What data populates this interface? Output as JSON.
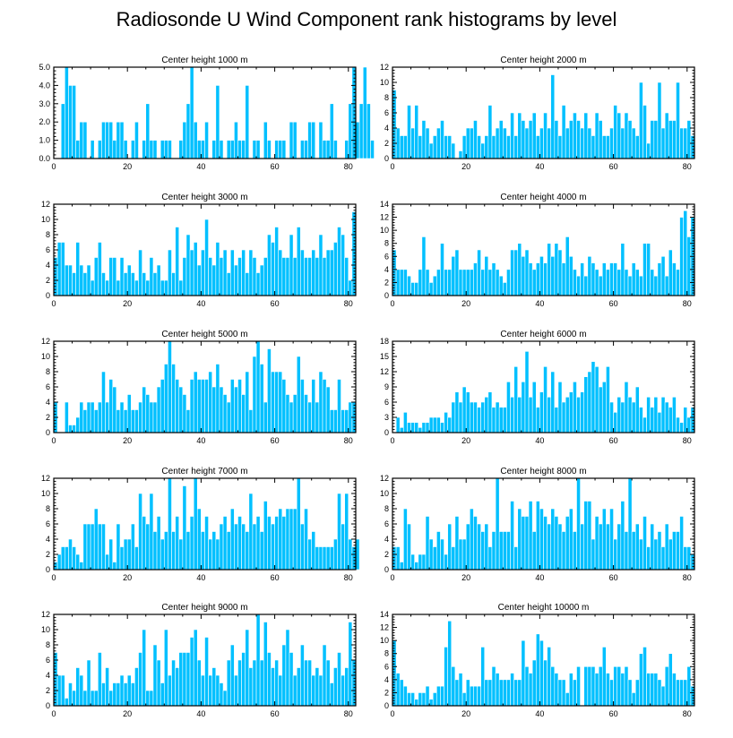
{
  "title": "Radiosonde U Wind Component rank histograms by level",
  "chart_data": [
    {
      "type": "bar",
      "title": "Center height 1000 m",
      "xlim": [
        0,
        82
      ],
      "ylim": [
        0,
        5
      ],
      "xticks": [
        0,
        20,
        40,
        60,
        80
      ],
      "yticks": [
        0,
        1,
        2,
        3,
        4,
        5
      ],
      "ytick_labels": [
        "0.0",
        "1.0",
        "2.0",
        "3.0",
        "4.0",
        "5.0"
      ],
      "values": [
        0,
        0,
        3,
        5,
        4,
        4,
        1,
        2,
        2,
        0,
        1,
        0,
        1,
        2,
        2,
        2,
        1,
        2,
        2,
        1,
        0,
        1,
        2,
        0,
        1,
        3,
        1,
        1,
        0,
        1,
        1,
        1,
        0,
        0,
        1,
        2,
        3,
        5,
        2,
        1,
        1,
        2,
        0,
        1,
        4,
        1,
        0,
        1,
        1,
        2,
        1,
        1,
        4,
        0,
        1,
        1,
        0,
        2,
        1,
        0,
        1,
        1,
        1,
        0,
        2,
        2,
        0,
        1,
        1,
        2,
        2,
        0,
        2,
        1,
        1,
        3,
        1,
        0,
        0,
        1,
        3,
        5,
        2,
        3,
        5,
        3,
        1
      ]
    },
    {
      "type": "bar",
      "title": "Center height 2000 m",
      "xlim": [
        0,
        82
      ],
      "ylim": [
        0,
        12
      ],
      "xticks": [
        0,
        20,
        40,
        60,
        80
      ],
      "yticks": [
        0,
        2,
        4,
        6,
        8,
        10,
        12
      ],
      "ytick_labels": [
        "0",
        "2",
        "4",
        "6",
        "8",
        "10",
        "12"
      ],
      "values": [
        9,
        4,
        3,
        3,
        7,
        4,
        7,
        3,
        5,
        4,
        2,
        3,
        4,
        5,
        3,
        3,
        2,
        0,
        1,
        3,
        4,
        4,
        5,
        3,
        2,
        3,
        7,
        3,
        4,
        5,
        4,
        3,
        6,
        3,
        6,
        5,
        4,
        5,
        6,
        3,
        4,
        6,
        4,
        11,
        5,
        3,
        7,
        4,
        5,
        6,
        5,
        4,
        6,
        4,
        3,
        6,
        5,
        3,
        3,
        4,
        7,
        6,
        4,
        6,
        5,
        4,
        3,
        10,
        7,
        2,
        5,
        5,
        10,
        4,
        6,
        5,
        5,
        10,
        4,
        4,
        5,
        3
      ]
    },
    {
      "type": "bar",
      "title": "Center height 3000 m",
      "xlim": [
        0,
        82
      ],
      "ylim": [
        0,
        12
      ],
      "xticks": [
        0,
        20,
        40,
        60,
        80
      ],
      "yticks": [
        0,
        2,
        4,
        6,
        8,
        10,
        12
      ],
      "ytick_labels": [
        "0",
        "2",
        "4",
        "6",
        "8",
        "10",
        "12"
      ],
      "values": [
        5,
        7,
        7,
        4,
        4,
        3,
        7,
        4,
        3,
        4,
        2,
        5,
        7,
        3,
        2,
        5,
        5,
        2,
        5,
        3,
        4,
        3,
        2,
        6,
        3,
        2,
        5,
        3,
        4,
        2,
        2,
        6,
        3,
        9,
        2,
        5,
        8,
        6,
        7,
        4,
        6,
        10,
        5,
        4,
        7,
        5,
        6,
        3,
        6,
        4,
        5,
        6,
        3,
        6,
        5,
        3,
        4,
        5,
        8,
        7,
        9,
        6,
        5,
        5,
        8,
        5,
        9,
        6,
        5,
        5,
        6,
        5,
        8,
        5,
        6,
        6,
        7,
        9,
        8,
        5,
        2,
        11
      ]
    },
    {
      "type": "bar",
      "title": "Center height 4000 m",
      "xlim": [
        0,
        82
      ],
      "ylim": [
        0,
        14
      ],
      "xticks": [
        0,
        20,
        40,
        60,
        80
      ],
      "yticks": [
        0,
        2,
        4,
        6,
        8,
        10,
        12,
        14
      ],
      "ytick_labels": [
        "0",
        "2",
        "4",
        "6",
        "8",
        "10",
        "12",
        "14"
      ],
      "values": [
        7,
        4,
        4,
        4,
        3,
        2,
        2,
        4,
        9,
        4,
        2,
        3,
        4,
        8,
        4,
        4,
        6,
        7,
        4,
        4,
        4,
        4,
        5,
        7,
        4,
        6,
        4,
        5,
        4,
        3,
        2,
        4,
        7,
        7,
        8,
        6,
        7,
        5,
        4,
        5,
        6,
        5,
        8,
        6,
        8,
        7,
        5,
        9,
        6,
        4,
        3,
        5,
        3,
        6,
        5,
        4,
        3,
        5,
        4,
        5,
        5,
        4,
        8,
        4,
        3,
        5,
        4,
        3,
        8,
        8,
        4,
        3,
        5,
        6,
        3,
        7,
        5,
        4,
        12,
        13,
        9,
        12
      ]
    },
    {
      "type": "bar",
      "title": "Center height 5000 m",
      "xlim": [
        0,
        82
      ],
      "ylim": [
        0,
        12
      ],
      "xticks": [
        0,
        20,
        40,
        60,
        80
      ],
      "yticks": [
        0,
        2,
        4,
        6,
        8,
        10,
        12
      ],
      "ytick_labels": [
        "0",
        "2",
        "4",
        "6",
        "8",
        "10",
        "12"
      ],
      "values": [
        4,
        0,
        0,
        4,
        1,
        1,
        2,
        4,
        3,
        4,
        4,
        3,
        4,
        8,
        4,
        7,
        6,
        3,
        4,
        3,
        5,
        3,
        3,
        4,
        6,
        5,
        4,
        4,
        6,
        7,
        9,
        12,
        9,
        7,
        6,
        5,
        3,
        7,
        8,
        7,
        7,
        7,
        8,
        6,
        9,
        6,
        5,
        4,
        7,
        6,
        7,
        5,
        8,
        3,
        10,
        12,
        9,
        4,
        11,
        8,
        8,
        8,
        7,
        5,
        4,
        5,
        10,
        7,
        5,
        4,
        7,
        4,
        8,
        7,
        6,
        3,
        3,
        7,
        3,
        3,
        4,
        4
      ]
    },
    {
      "type": "bar",
      "title": "Center height 6000 m",
      "xlim": [
        0,
        82
      ],
      "ylim": [
        0,
        18
      ],
      "xticks": [
        0,
        20,
        40,
        60,
        80
      ],
      "yticks": [
        0,
        3,
        6,
        9,
        12,
        15,
        18
      ],
      "ytick_labels": [
        "0",
        "3",
        "6",
        "9",
        "12",
        "15",
        "18"
      ],
      "values": [
        0,
        3,
        1,
        4,
        2,
        2,
        2,
        1,
        2,
        2,
        3,
        3,
        3,
        2,
        4,
        3,
        6,
        8,
        6,
        9,
        8,
        6,
        6,
        5,
        6,
        7,
        8,
        5,
        6,
        5,
        5,
        10,
        7,
        13,
        7,
        10,
        16,
        7,
        10,
        5,
        8,
        13,
        7,
        12,
        5,
        10,
        6,
        7,
        8,
        10,
        7,
        8,
        11,
        12,
        14,
        13,
        9,
        10,
        13,
        6,
        4,
        7,
        6,
        10,
        7,
        6,
        9,
        5,
        3,
        7,
        5,
        7,
        4,
        7,
        6,
        5,
        7,
        3,
        2,
        5,
        3,
        5
      ]
    },
    {
      "type": "bar",
      "title": "Center height 7000 m",
      "xlim": [
        0,
        82
      ],
      "ylim": [
        0,
        12
      ],
      "xticks": [
        0,
        20,
        40,
        60,
        80
      ],
      "yticks": [
        0,
        2,
        4,
        6,
        8,
        10,
        12
      ],
      "ytick_labels": [
        "0",
        "2",
        "4",
        "6",
        "8",
        "10",
        "12"
      ],
      "values": [
        1,
        2,
        3,
        3,
        4,
        3,
        2,
        1,
        6,
        6,
        6,
        8,
        6,
        6,
        2,
        4,
        1,
        6,
        3,
        4,
        4,
        6,
        3,
        10,
        7,
        6,
        10,
        5,
        7,
        4,
        5,
        12,
        5,
        7,
        4,
        11,
        5,
        7,
        12,
        8,
        5,
        7,
        4,
        5,
        4,
        6,
        7,
        5,
        8,
        6,
        7,
        6,
        5,
        10,
        6,
        7,
        5,
        9,
        7,
        6,
        7,
        8,
        7,
        8,
        8,
        8,
        12,
        6,
        8,
        4,
        5,
        3,
        3,
        3,
        3,
        3,
        4,
        10,
        6,
        10,
        4,
        3,
        4
      ]
    },
    {
      "type": "bar",
      "title": "Center height 8000 m",
      "xlim": [
        0,
        82
      ],
      "ylim": [
        0,
        12
      ],
      "xticks": [
        0,
        20,
        40,
        60,
        80
      ],
      "yticks": [
        0,
        2,
        4,
        6,
        8,
        10,
        12
      ],
      "ytick_labels": [
        "0",
        "2",
        "4",
        "6",
        "8",
        "10",
        "12"
      ],
      "values": [
        3,
        3,
        1,
        8,
        6,
        2,
        1,
        2,
        2,
        7,
        4,
        3,
        5,
        4,
        2,
        6,
        3,
        7,
        4,
        4,
        6,
        8,
        7,
        6,
        5,
        6,
        3,
        5,
        12,
        5,
        5,
        5,
        9,
        3,
        8,
        7,
        7,
        9,
        5,
        9,
        8,
        7,
        6,
        8,
        7,
        6,
        5,
        7,
        8,
        5,
        12,
        6,
        9,
        9,
        4,
        7,
        6,
        8,
        6,
        8,
        4,
        6,
        9,
        5,
        12,
        5,
        6,
        4,
        7,
        3,
        6,
        4,
        5,
        3,
        6,
        4,
        5,
        5,
        7,
        3,
        3,
        2
      ]
    },
    {
      "type": "bar",
      "title": "Center height 9000 m",
      "xlim": [
        0,
        82
      ],
      "ylim": [
        0,
        12
      ],
      "xticks": [
        0,
        20,
        40,
        60,
        80
      ],
      "yticks": [
        0,
        2,
        4,
        6,
        8,
        10,
        12
      ],
      "ytick_labels": [
        "0",
        "2",
        "4",
        "6",
        "8",
        "10",
        "12"
      ],
      "values": [
        7,
        4,
        4,
        1,
        3,
        2,
        5,
        4,
        2,
        6,
        2,
        2,
        7,
        3,
        5,
        2,
        3,
        3,
        4,
        3,
        4,
        3,
        5,
        7,
        10,
        2,
        2,
        8,
        6,
        3,
        10,
        4,
        6,
        5,
        7,
        7,
        7,
        9,
        10,
        6,
        4,
        9,
        4,
        5,
        4,
        3,
        2,
        6,
        8,
        4,
        6,
        7,
        10,
        5,
        6,
        12,
        6,
        11,
        7,
        5,
        6,
        4,
        8,
        10,
        7,
        4,
        5,
        8,
        6,
        6,
        4,
        5,
        4,
        8,
        6,
        3,
        5,
        7,
        4,
        5,
        11,
        6
      ]
    },
    {
      "type": "bar",
      "title": "Center height 10000 m",
      "xlim": [
        0,
        82
      ],
      "ylim": [
        0,
        14
      ],
      "xticks": [
        0,
        20,
        40,
        60,
        80
      ],
      "yticks": [
        0,
        2,
        4,
        6,
        8,
        10,
        12,
        14
      ],
      "ytick_labels": [
        "0",
        "2",
        "4",
        "6",
        "8",
        "10",
        "12",
        "14"
      ],
      "values": [
        10,
        5,
        4,
        3,
        2,
        2,
        1,
        2,
        2,
        3,
        1,
        2,
        3,
        3,
        9,
        13,
        6,
        4,
        5,
        2,
        4,
        3,
        3,
        3,
        9,
        4,
        4,
        6,
        5,
        4,
        4,
        4,
        5,
        4,
        4,
        10,
        6,
        5,
        7,
        11,
        10,
        7,
        9,
        6,
        5,
        4,
        4,
        2,
        5,
        4,
        6,
        0,
        6,
        6,
        6,
        5,
        6,
        9,
        5,
        4,
        6,
        6,
        5,
        6,
        4,
        2,
        4,
        8,
        9,
        5,
        5,
        5,
        4,
        3,
        6,
        8,
        5,
        4,
        4,
        4,
        6,
        3
      ]
    }
  ]
}
